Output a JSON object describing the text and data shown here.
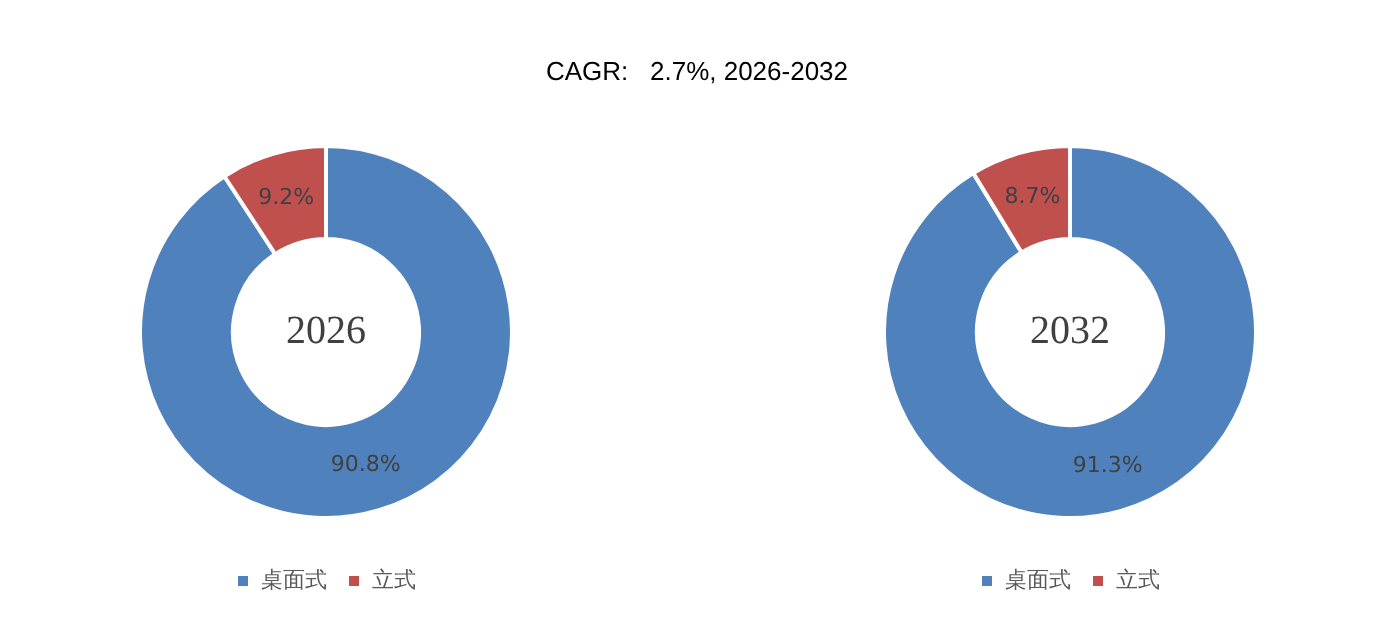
{
  "chart_data": [
    {
      "type": "donut",
      "title": "CAGR:   2.7%, 2026-2032",
      "categories": [
        "桌面式",
        "立式"
      ],
      "values": [
        90.8,
        9.2
      ],
      "colors": [
        "#4f81bd",
        "#c0504d"
      ],
      "value_labels": [
        "90.8%",
        "9.2%"
      ],
      "annotations": [
        "2026"
      ],
      "legend": "bottom"
    },
    {
      "type": "donut",
      "categories": [
        "桌面式",
        "立式"
      ],
      "values": [
        91.3,
        8.7
      ],
      "colors": [
        "#4f81bd",
        "#c0504d"
      ],
      "value_labels": [
        "91.3%",
        "8.7%"
      ],
      "annotations": [
        "2032"
      ],
      "legend": "bottom"
    }
  ]
}
